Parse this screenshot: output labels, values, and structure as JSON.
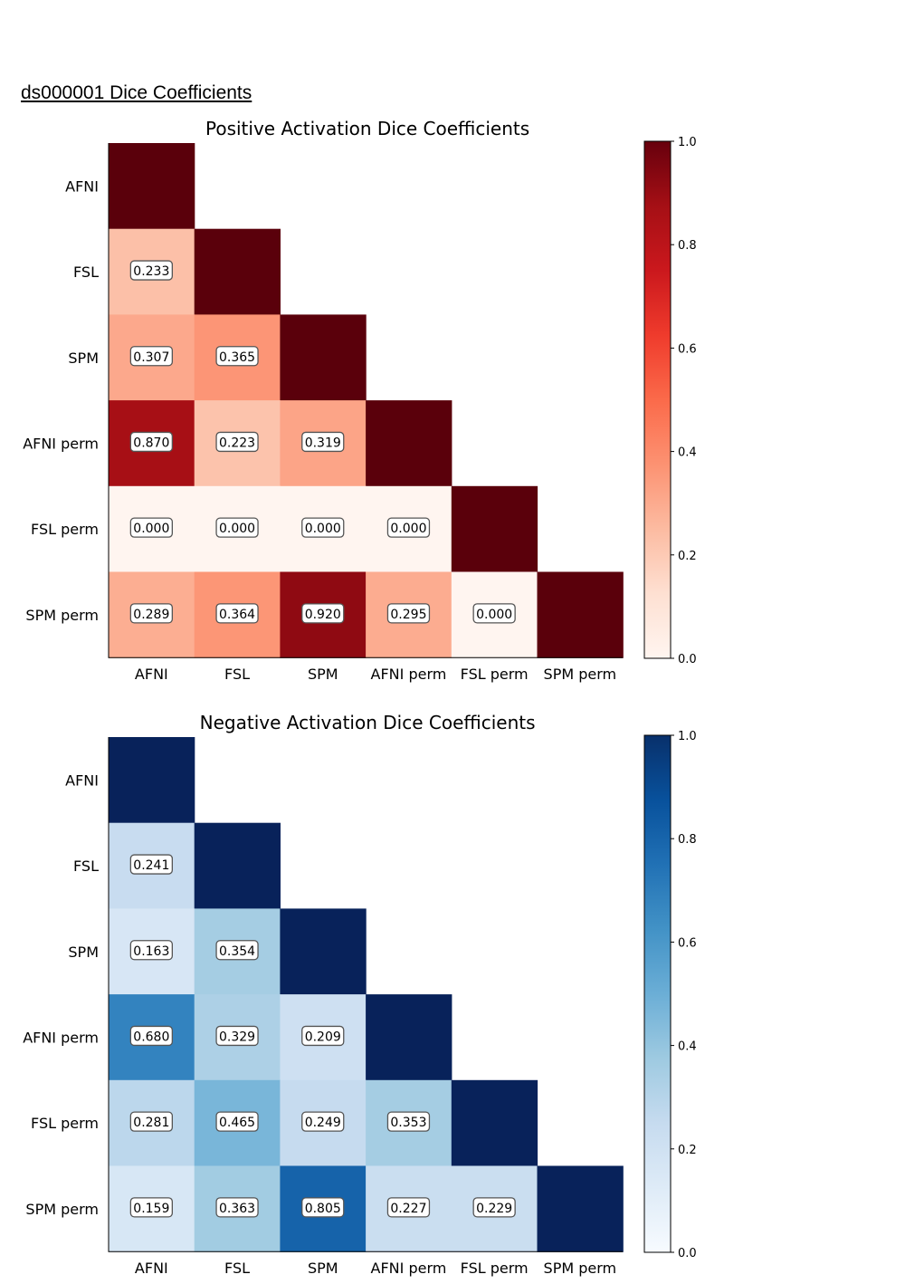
{
  "page": {
    "title": "ds000001 Dice Coefficients"
  },
  "chart_data": [
    {
      "type": "heatmap",
      "title": "Positive Activation Dice Coefficients",
      "colormap": "Reds",
      "colorscale_stops": [
        "#fff5f0",
        "#fee0d2",
        "#fcbba1",
        "#fc9272",
        "#fb6a4a",
        "#ef3b2c",
        "#cb181d",
        "#a50f15",
        "#67000d"
      ],
      "diagonal_color": "#5a000b",
      "x_categories": [
        "AFNI",
        "FSL",
        "SPM",
        "AFNI perm",
        "FSL perm",
        "SPM perm"
      ],
      "y_categories": [
        "AFNI",
        "FSL",
        "SPM",
        "AFNI perm",
        "FSL perm",
        "SPM perm"
      ],
      "lower_triangle": [
        [],
        [
          "0.233"
        ],
        [
          "0.307",
          "0.365"
        ],
        [
          "0.870",
          "0.223",
          "0.319"
        ],
        [
          "0.000",
          "0.000",
          "0.000",
          "0.000"
        ],
        [
          "0.289",
          "0.364",
          "0.920",
          "0.295",
          "0.000"
        ]
      ],
      "colorbar": {
        "range": [
          0,
          1
        ],
        "ticks": [
          "0.0",
          "0.2",
          "0.4",
          "0.6",
          "0.8",
          "1.0"
        ]
      }
    },
    {
      "type": "heatmap",
      "title": "Negative Activation Dice Coefficients",
      "colormap": "Blues",
      "colorscale_stops": [
        "#f7fbff",
        "#deebf7",
        "#c6dbef",
        "#9ecae1",
        "#6baed6",
        "#4292c6",
        "#2171b5",
        "#08519c",
        "#08306b"
      ],
      "diagonal_color": "#08225a",
      "x_categories": [
        "AFNI",
        "FSL",
        "SPM",
        "AFNI perm",
        "FSL perm",
        "SPM perm"
      ],
      "y_categories": [
        "AFNI",
        "FSL",
        "SPM",
        "AFNI perm",
        "FSL perm",
        "SPM perm"
      ],
      "lower_triangle": [
        [],
        [
          "0.241"
        ],
        [
          "0.163",
          "0.354"
        ],
        [
          "0.680",
          "0.329",
          "0.209"
        ],
        [
          "0.281",
          "0.465",
          "0.249",
          "0.353"
        ],
        [
          "0.159",
          "0.363",
          "0.805",
          "0.227",
          "0.229"
        ]
      ],
      "colorbar": {
        "range": [
          0,
          1
        ],
        "ticks": [
          "0.0",
          "0.2",
          "0.4",
          "0.6",
          "0.8",
          "1.0"
        ]
      }
    }
  ]
}
